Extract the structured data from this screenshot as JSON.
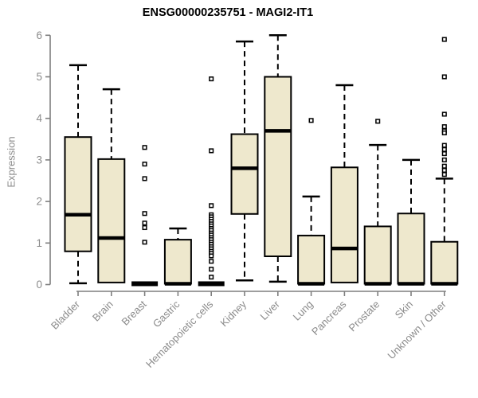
{
  "title": "ENSG00000235751 - MAGI2-IT1",
  "colors": {
    "box_fill": "#EEE8CD",
    "box_border": "#000000",
    "median": "#000000",
    "whisker": "#000000",
    "outlier_fill": "#FFFFFF",
    "axis_line": "#7f7f7f",
    "label_text": "#8b8b8b",
    "title_text": "#000000"
  },
  "chart_data": {
    "type": "boxplot",
    "title": "ENSG00000235751 - MAGI2-IT1",
    "xlabel": "",
    "ylabel": "Expression",
    "ylim": [
      0,
      6
    ],
    "y_ticks": [
      0,
      1,
      2,
      3,
      4,
      5,
      6
    ],
    "grid": "off",
    "categories": [
      "Bladder",
      "Brain",
      "Breast",
      "Gastric",
      "Hematopoietic cells",
      "Kidney",
      "Liver",
      "Lung",
      "Pancreas",
      "Prostate",
      "Skin",
      "Unknown / Other"
    ],
    "series": [
      {
        "name": "Bladder",
        "low": 0.03,
        "q1": 0.8,
        "median": 1.68,
        "q3": 3.55,
        "high": 5.28,
        "outliers": []
      },
      {
        "name": "Brain",
        "low": 0.05,
        "q1": 0.05,
        "median": 1.12,
        "q3": 3.02,
        "high": 4.7,
        "outliers": []
      },
      {
        "name": "Breast",
        "low": 0.02,
        "q1": 0.02,
        "median": 0.02,
        "q3": 0.02,
        "high": 0.02,
        "outliers": [
          3.3,
          2.9,
          2.55,
          1.71,
          1.48,
          1.37,
          1.02
        ]
      },
      {
        "name": "Gastric",
        "low": 0.02,
        "q1": 0.02,
        "median": 0.02,
        "q3": 1.08,
        "high": 1.35,
        "outliers": []
      },
      {
        "name": "Hematopoietic cells",
        "low": 0.02,
        "q1": 0.02,
        "median": 0.02,
        "q3": 0.02,
        "high": 0.02,
        "outliers": [
          4.95,
          3.22,
          1.9,
          1.68,
          1.63,
          1.57,
          1.52,
          1.46,
          1.41,
          1.35,
          1.3,
          1.24,
          1.19,
          1.13,
          1.08,
          1.02,
          0.97,
          0.91,
          0.86,
          0.8,
          0.75,
          0.69,
          0.56,
          0.37,
          0.18
        ]
      },
      {
        "name": "Kidney",
        "low": 0.1,
        "q1": 1.7,
        "median": 2.8,
        "q3": 3.62,
        "high": 5.85,
        "outliers": []
      },
      {
        "name": "Liver",
        "low": 0.07,
        "q1": 0.68,
        "median": 3.7,
        "q3": 5.0,
        "high": 6.0,
        "outliers": []
      },
      {
        "name": "Lung",
        "low": 0.02,
        "q1": 0.02,
        "median": 0.02,
        "q3": 1.18,
        "high": 2.12,
        "outliers": [
          3.95
        ]
      },
      {
        "name": "Pancreas",
        "low": 0.05,
        "q1": 0.05,
        "median": 0.87,
        "q3": 2.82,
        "high": 4.8,
        "outliers": []
      },
      {
        "name": "Prostate",
        "low": 0.02,
        "q1": 0.02,
        "median": 0.02,
        "q3": 1.4,
        "high": 3.36,
        "outliers": [
          3.93
        ]
      },
      {
        "name": "Skin",
        "low": 0.02,
        "q1": 0.02,
        "median": 0.02,
        "q3": 1.71,
        "high": 3.0,
        "outliers": []
      },
      {
        "name": "Unknown / Other",
        "low": 0.02,
        "q1": 0.02,
        "median": 0.02,
        "q3": 1.03,
        "high": 2.55,
        "outliers": [
          5.9,
          5.0,
          4.1,
          3.8,
          3.7,
          3.65,
          3.35,
          3.25,
          3.15,
          3.0,
          2.85,
          2.75,
          2.65
        ]
      }
    ]
  }
}
